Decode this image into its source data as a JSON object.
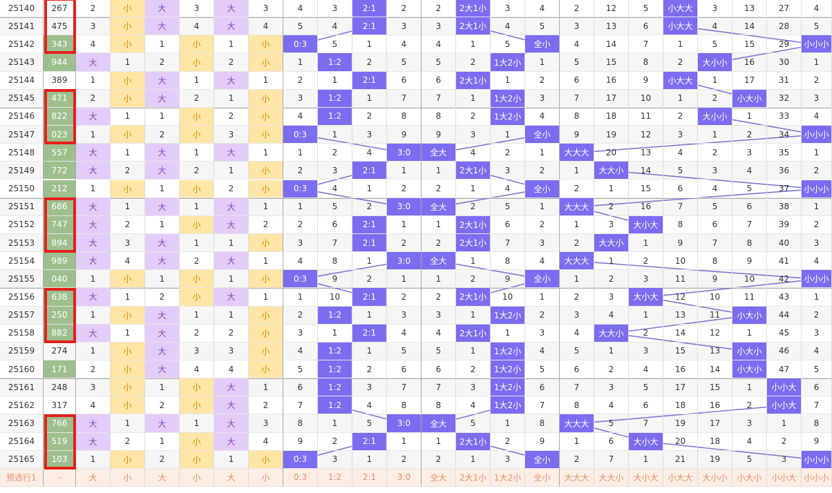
{
  "table": {
    "rows": [
      {
        "highlight": false,
        "cells": [
          "25140",
          "267",
          2,
          "小",
          "大",
          3,
          "大",
          3,
          4,
          3,
          "2:1",
          2,
          2,
          "2大1小",
          3,
          4,
          2,
          12,
          5,
          "小大大",
          3,
          13,
          27,
          4
        ]
      },
      {
        "highlight": false,
        "cells": [
          "25141",
          "475",
          3,
          "小",
          "大",
          4,
          "大",
          4,
          5,
          4,
          "2:1",
          3,
          3,
          "2大1小",
          4,
          5,
          3,
          13,
          6,
          "小大大",
          4,
          14,
          28,
          5
        ]
      },
      {
        "highlight": true,
        "cells": [
          "25142",
          "343",
          4,
          "小",
          1,
          "小",
          1,
          "小",
          "0:3",
          5,
          1,
          4,
          4,
          1,
          5,
          "全小",
          4,
          14,
          7,
          1,
          5,
          15,
          29,
          "小小小"
        ]
      },
      {
        "highlight": true,
        "cells": [
          "25143",
          "944",
          "大",
          1,
          2,
          "小",
          2,
          "小",
          1,
          "1:2",
          2,
          5,
          5,
          2,
          "1大2小",
          1,
          5,
          15,
          8,
          2,
          "大小小",
          16,
          30,
          1
        ]
      },
      {
        "highlight": false,
        "cells": [
          "25144",
          "389",
          1,
          "小",
          "大",
          1,
          "大",
          1,
          2,
          1,
          "2:1",
          6,
          6,
          "2大1小",
          1,
          2,
          6,
          16,
          9,
          "小大大",
          1,
          17,
          31,
          2
        ]
      },
      {
        "highlight": true,
        "cells": [
          "25145",
          "471",
          2,
          "小",
          "大",
          2,
          1,
          "小",
          3,
          "1:2",
          1,
          7,
          7,
          1,
          "1大2小",
          3,
          7,
          17,
          10,
          1,
          2,
          "小大小",
          32,
          3
        ]
      },
      {
        "highlight": true,
        "cells": [
          "25146",
          "822",
          "大",
          1,
          1,
          "小",
          2,
          "小",
          4,
          "1:2",
          2,
          8,
          8,
          2,
          "1大2小",
          4,
          8,
          18,
          11,
          2,
          "大小小",
          1,
          33,
          4
        ]
      },
      {
        "highlight": true,
        "cells": [
          "25147",
          "023",
          1,
          "小",
          2,
          "小",
          3,
          "小",
          "0:3",
          1,
          3,
          9,
          9,
          3,
          1,
          "全小",
          9,
          19,
          12,
          3,
          1,
          2,
          34,
          "小小小"
        ]
      },
      {
        "highlight": true,
        "cells": [
          "25148",
          "557",
          "大",
          1,
          "大",
          1,
          "大",
          1,
          1,
          2,
          4,
          "3:0",
          "全大",
          4,
          2,
          1,
          "大大大",
          20,
          13,
          4,
          2,
          3,
          35,
          1
        ]
      },
      {
        "highlight": true,
        "cells": [
          "25149",
          "772",
          "大",
          2,
          "大",
          2,
          1,
          "小",
          2,
          3,
          "2:1",
          1,
          1,
          "2大1小",
          3,
          2,
          1,
          "大大小",
          14,
          5,
          3,
          4,
          36,
          2
        ]
      },
      {
        "highlight": true,
        "cells": [
          "25150",
          "212",
          1,
          "小",
          1,
          "小",
          2,
          "小",
          "0:3",
          4,
          1,
          2,
          2,
          1,
          4,
          "全小",
          2,
          1,
          15,
          6,
          4,
          5,
          37,
          "小小小"
        ]
      },
      {
        "highlight": true,
        "cells": [
          "25151",
          "686",
          "大",
          1,
          "大",
          1,
          "大",
          1,
          1,
          5,
          2,
          "3:0",
          "全大",
          2,
          5,
          1,
          "大大大",
          2,
          16,
          7,
          5,
          6,
          38,
          1
        ]
      },
      {
        "highlight": true,
        "cells": [
          "25152",
          "747",
          "大",
          2,
          1,
          "小",
          "大",
          2,
          2,
          6,
          "2:1",
          1,
          1,
          "2大1小",
          6,
          2,
          1,
          3,
          "大小大",
          8,
          6,
          7,
          39,
          2
        ]
      },
      {
        "highlight": true,
        "cells": [
          "25153",
          "894",
          "大",
          3,
          "大",
          1,
          1,
          "小",
          3,
          7,
          "2:1",
          2,
          2,
          "2大1小",
          7,
          3,
          2,
          "大大小",
          1,
          9,
          7,
          8,
          40,
          3
        ]
      },
      {
        "highlight": true,
        "cells": [
          "25154",
          "989",
          "大",
          4,
          "大",
          2,
          "大",
          1,
          4,
          8,
          1,
          "3:0",
          "全大",
          1,
          8,
          4,
          "大大大",
          1,
          2,
          10,
          8,
          9,
          41,
          4
        ]
      },
      {
        "highlight": true,
        "cells": [
          "25155",
          "040",
          1,
          "小",
          1,
          "小",
          1,
          "小",
          "0:3",
          9,
          2,
          1,
          1,
          2,
          9,
          "全小",
          1,
          2,
          3,
          11,
          9,
          10,
          42,
          "小小小"
        ]
      },
      {
        "highlight": true,
        "cells": [
          "25156",
          "638",
          "大",
          1,
          2,
          "小",
          "大",
          1,
          1,
          10,
          "2:1",
          2,
          2,
          "2大1小",
          10,
          1,
          2,
          3,
          "大小大",
          12,
          10,
          11,
          43,
          1
        ]
      },
      {
        "highlight": true,
        "cells": [
          "25157",
          "250",
          1,
          "小",
          "大",
          1,
          1,
          "小",
          2,
          "1:2",
          1,
          3,
          3,
          1,
          "1大2小",
          2,
          3,
          4,
          1,
          13,
          11,
          "小大小",
          44,
          2
        ]
      },
      {
        "highlight": true,
        "cells": [
          "25158",
          "882",
          "大",
          1,
          "大",
          2,
          2,
          "小",
          3,
          1,
          "2:1",
          4,
          4,
          "2大1小",
          1,
          3,
          4,
          "大大小",
          2,
          14,
          12,
          1,
          45,
          3
        ]
      },
      {
        "highlight": false,
        "cells": [
          "25159",
          "274",
          1,
          "小",
          "大",
          3,
          3,
          "小",
          4,
          "1:2",
          1,
          5,
          5,
          1,
          "1大2小",
          4,
          5,
          1,
          3,
          15,
          13,
          "小大小",
          46,
          4
        ]
      },
      {
        "highlight": true,
        "cells": [
          "25160",
          "171",
          2,
          "小",
          "大",
          4,
          4,
          "小",
          5,
          "1:2",
          2,
          6,
          6,
          2,
          "1大2小",
          5,
          6,
          2,
          4,
          16,
          14,
          "小大小",
          47,
          5
        ]
      },
      {
        "highlight": false,
        "cells": [
          "25161",
          "248",
          3,
          "小",
          1,
          "小",
          "大",
          1,
          6,
          "1:2",
          3,
          7,
          7,
          3,
          "1大2小",
          6,
          7,
          3,
          5,
          17,
          15,
          1,
          "小小大",
          6
        ]
      },
      {
        "highlight": false,
        "cells": [
          "25162",
          "317",
          4,
          "小",
          2,
          "小",
          "大",
          2,
          7,
          "1:2",
          4,
          8,
          8,
          4,
          "1大2小",
          7,
          8,
          4,
          6,
          18,
          16,
          2,
          "小小大",
          7
        ]
      },
      {
        "highlight": true,
        "cells": [
          "25163",
          "766",
          "大",
          1,
          "大",
          1,
          "大",
          3,
          8,
          1,
          5,
          "3:0",
          "全大",
          5,
          1,
          8,
          "大大大",
          5,
          7,
          19,
          17,
          3,
          1,
          8
        ]
      },
      {
        "highlight": true,
        "cells": [
          "25164",
          "519",
          "大",
          2,
          1,
          "小",
          "大",
          4,
          9,
          2,
          "2:1",
          1,
          1,
          "2大1小",
          2,
          9,
          1,
          6,
          "大小大",
          20,
          18,
          4,
          2,
          9
        ]
      },
      {
        "highlight": true,
        "cells": [
          "25165",
          "103",
          1,
          "小",
          2,
          "小",
          1,
          "小",
          "0:3",
          3,
          1,
          2,
          2,
          1,
          3,
          "全小",
          2,
          7,
          1,
          21,
          19,
          5,
          3,
          "小小小"
        ]
      }
    ],
    "footer": [
      "预选行1",
      "-",
      "大",
      "小",
      "大",
      "小",
      "大",
      "小",
      "0:3",
      "1:2",
      "2:1",
      "3:0",
      "全大",
      "2大1小",
      "1大2小",
      "全小",
      "大大大",
      "大大小",
      "大小大",
      "小大大",
      "大小小",
      "小大小",
      "小小大",
      "小小小"
    ]
  }
}
